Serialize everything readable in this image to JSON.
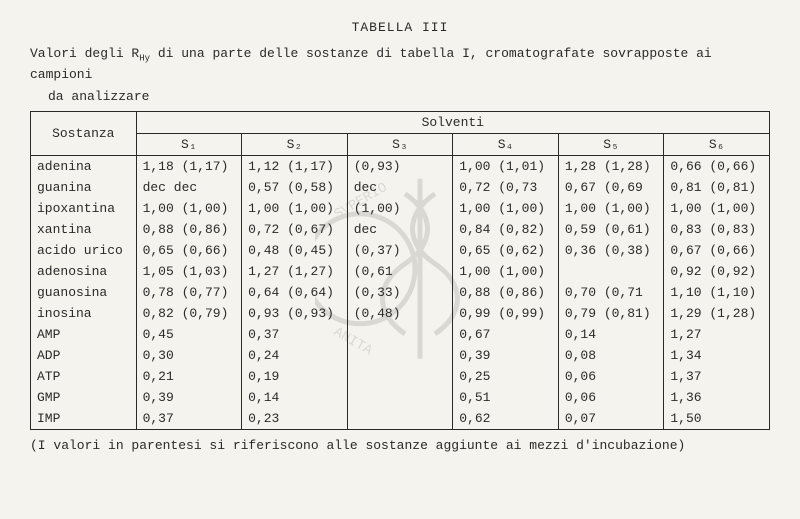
{
  "title": "TABELLA III",
  "caption_line1": "Valori degli R",
  "caption_sub": "Hy",
  "caption_line1b": " di una parte delle sostanze di tabella I, cromatografate sovrapposte ai campioni",
  "caption_line2": "da analizzare",
  "headers": {
    "sostanza": "Sostanza",
    "solventi": "Solventi",
    "cols": [
      "S₁",
      "S₂",
      "S₃",
      "S₄",
      "S₅",
      "S₆"
    ]
  },
  "rows": [
    {
      "n": "adenina",
      "c": [
        "1,18 (1,17)",
        "1,12 (1,17)",
        "(0,93)",
        "1,00 (1,01)",
        "1,28 (1,28)",
        "0,66 (0,66)"
      ]
    },
    {
      "n": "guanina",
      "c": [
        "dec   dec",
        "0,57 (0,58)",
        "dec",
        "0,72 (0,73",
        "0,67 (0,69",
        "0,81 (0,81)"
      ]
    },
    {
      "n": "ipoxantina",
      "c": [
        "1,00 (1,00)",
        "1,00 (1,00)",
        "(1,00)",
        "1,00 (1,00)",
        "1,00 (1,00)",
        "1,00 (1,00)"
      ]
    },
    {
      "n": "xantina",
      "c": [
        "0,88 (0,86)",
        "0,72 (0,67)",
        "dec",
        "0,84 (0,82)",
        "0,59 (0,61)",
        "0,83 (0,83)"
      ]
    },
    {
      "n": "acido urico",
      "c": [
        "0,65 (0,66)",
        "0,48 (0,45)",
        "(0,37)",
        "0,65 (0,62)",
        "0,36 (0,38)",
        "0,67 (0,66)"
      ]
    },
    {
      "n": "adenosina",
      "c": [
        "1,05 (1,03)",
        "1,27 (1,27)",
        "(0,61",
        "1,00 (1,00)",
        "",
        "0,92 (0,92)"
      ]
    },
    {
      "n": "guanosina",
      "c": [
        "0,78 (0,77)",
        "0,64 (0,64)",
        "(0,33)",
        "0,88 (0,86)",
        "0,70 (0,71",
        "1,10 (1,10)"
      ]
    },
    {
      "n": "inosina",
      "c": [
        "0,82 (0,79)",
        "0,93 (0,93)",
        "(0,48)",
        "0,99 (0,99)",
        "0,79 (0,81)",
        "1,29 (1,28)"
      ]
    },
    {
      "n": "AMP",
      "c": [
        "0,45",
        "0,37",
        "",
        "0,67",
        "0,14",
        "1,27"
      ]
    },
    {
      "n": "ADP",
      "c": [
        "0,30",
        "0,24",
        "",
        "0,39",
        "0,08",
        "1,34"
      ]
    },
    {
      "n": "ATP",
      "c": [
        "0,21",
        "0,19",
        "",
        "0,25",
        "0,06",
        "1,37"
      ]
    },
    {
      "n": "GMP",
      "c": [
        "0,39",
        "0,14",
        "",
        "0,51",
        "0,06",
        "1,36"
      ]
    },
    {
      "n": "IMP",
      "c": [
        "0,37",
        "0,23",
        "",
        "0,62",
        "0,07",
        "1,50"
      ]
    }
  ],
  "footnote": "(I valori in parentesi si riferiscono alle sostanze aggiunte ai mezzi d'incubazione)",
  "style": {
    "bg": "#f5f3ee",
    "fg": "#2a2a28",
    "font": "Courier New",
    "fontsize": 13,
    "watermark_opacity": 0.13
  }
}
